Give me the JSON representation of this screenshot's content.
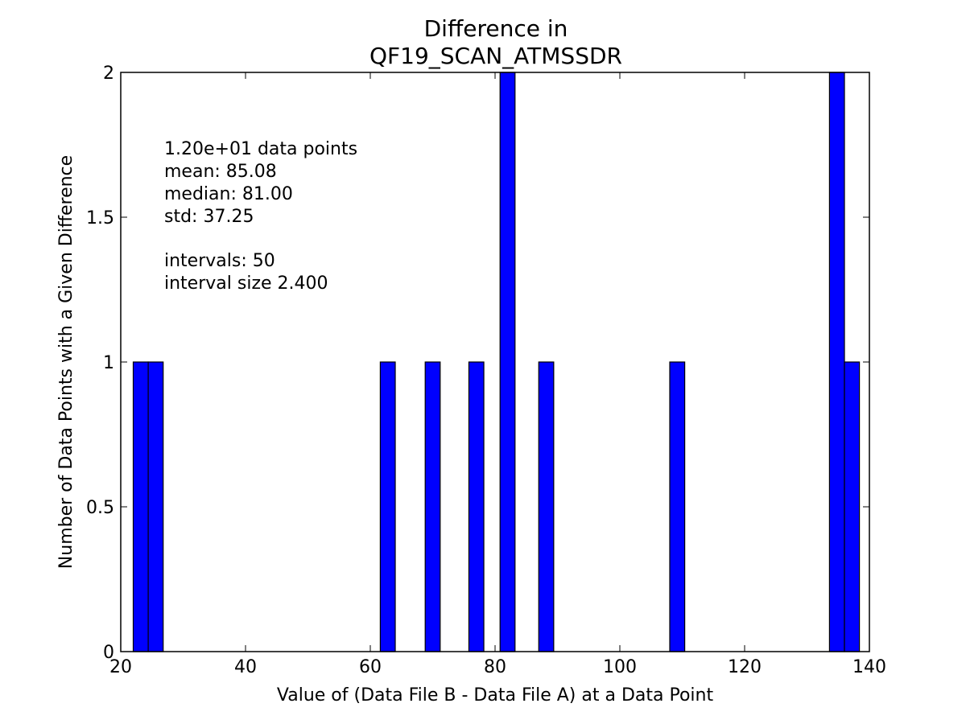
{
  "chart_data": {
    "type": "bar",
    "title_lines": [
      "Difference in",
      "QF19_SCAN_ATMSSDR"
    ],
    "xlabel": "Value of (Data File B - Data File A) at a Data Point",
    "ylabel": "Number of Data Points with a Given Difference",
    "xlim": [
      20,
      140
    ],
    "ylim": [
      0,
      2
    ],
    "xticks": [
      20,
      40,
      60,
      80,
      100,
      120,
      140
    ],
    "yticks": [
      0,
      0.5,
      1,
      1.5,
      2
    ],
    "ytick_labels": [
      "0",
      "0.5",
      "1",
      "1.5",
      "2"
    ],
    "bin_width": 2.4,
    "bins": [
      {
        "x0": 22.0,
        "value": 1
      },
      {
        "x0": 24.4,
        "value": 1
      },
      {
        "x0": 61.6,
        "value": 1
      },
      {
        "x0": 68.8,
        "value": 1
      },
      {
        "x0": 75.8,
        "value": 1
      },
      {
        "x0": 80.8,
        "value": 2
      },
      {
        "x0": 87.0,
        "value": 1
      },
      {
        "x0": 108.0,
        "value": 1
      },
      {
        "x0": 133.6,
        "value": 2
      },
      {
        "x0": 136.0,
        "value": 1
      }
    ],
    "bar_color": "#0000ff",
    "grid": false,
    "annotation_lines": [
      "1.20e+01 data points",
      "mean: 85.08",
      "median: 81.00",
      "std: 37.25",
      "",
      "intervals: 50",
      "interval size 2.400"
    ]
  }
}
